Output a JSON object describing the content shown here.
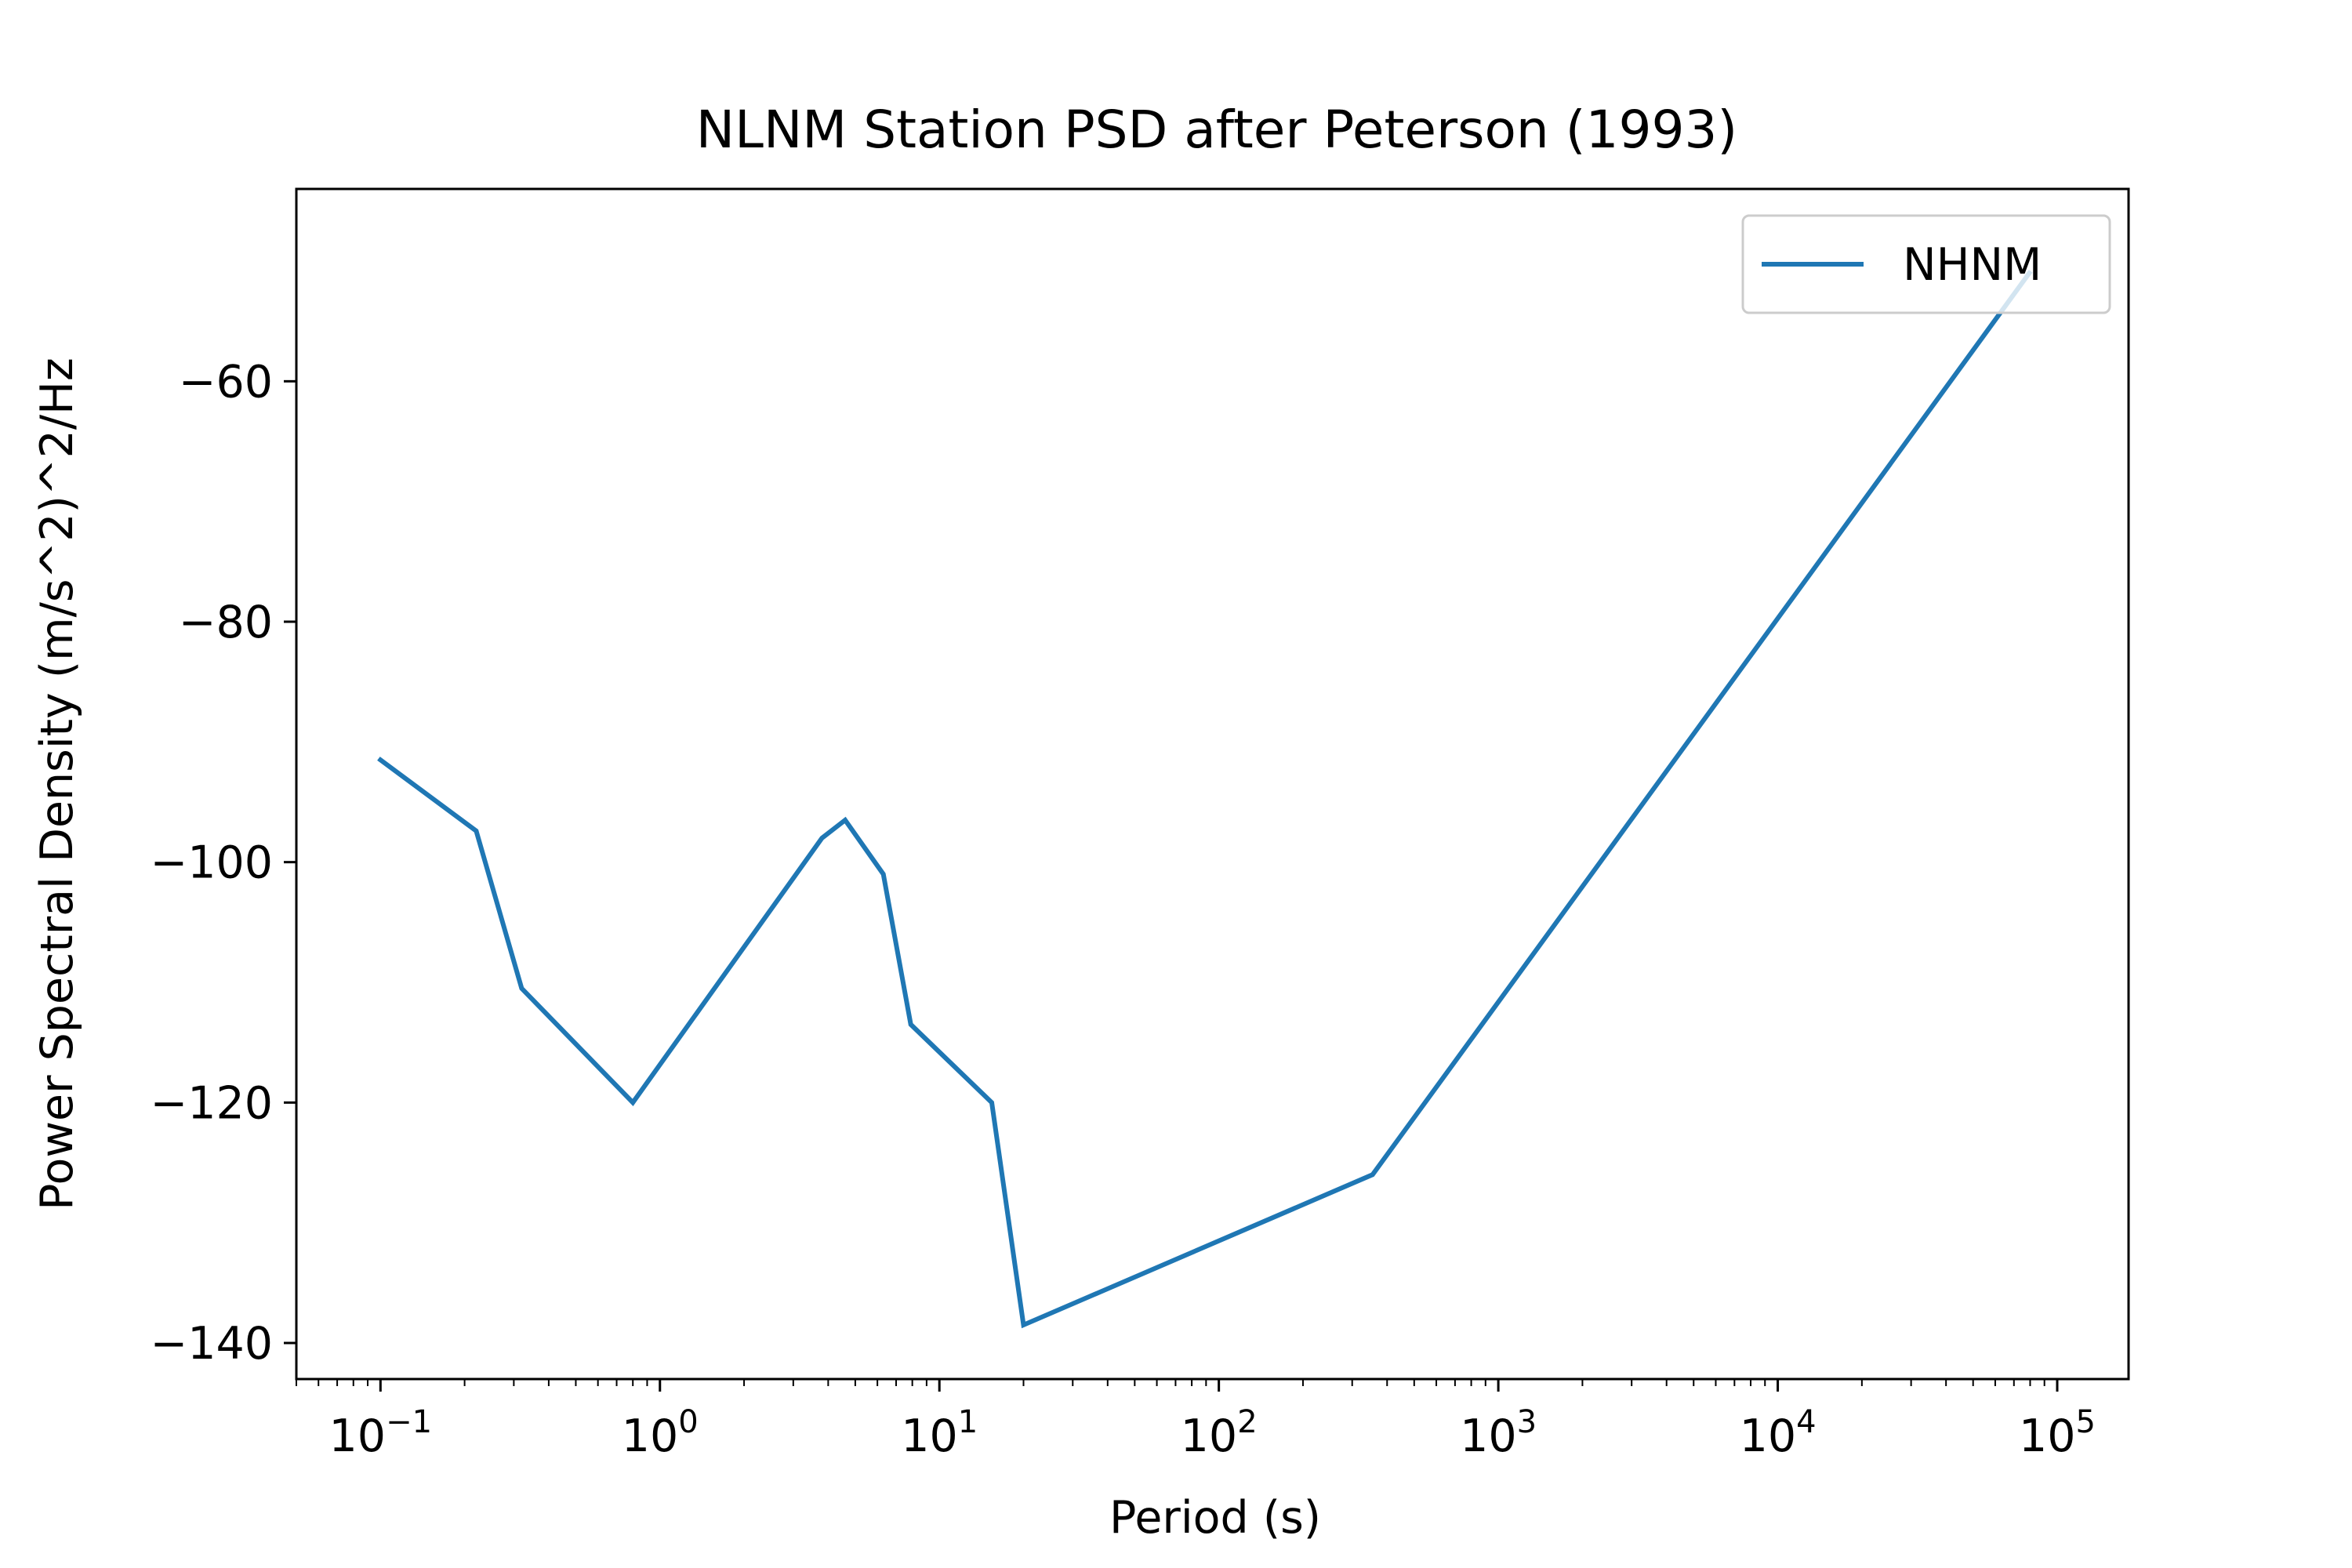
{
  "chart_data": {
    "type": "line",
    "title": "NLNM Station PSD after Peterson (1993)",
    "xlabel": "Period (s)",
    "ylabel": "Power Spectral Density (m/s^2)^2/Hz",
    "xscale": "log",
    "xlim": [
      0.05,
      180000
    ],
    "ylim": [
      -143,
      -44
    ],
    "x_ticks": [
      {
        "value": 0.1,
        "base": "10",
        "exp": "−1"
      },
      {
        "value": 1,
        "base": "10",
        "exp": "0"
      },
      {
        "value": 10,
        "base": "10",
        "exp": "1"
      },
      {
        "value": 100,
        "base": "10",
        "exp": "2"
      },
      {
        "value": 1000,
        "base": "10",
        "exp": "3"
      },
      {
        "value": 10000,
        "base": "10",
        "exp": "4"
      },
      {
        "value": 100000,
        "base": "10",
        "exp": "5"
      }
    ],
    "y_ticks": [
      {
        "value": -60,
        "label": "−60"
      },
      {
        "value": -80,
        "label": "−80"
      },
      {
        "value": -100,
        "label": "−100"
      },
      {
        "value": -120,
        "label": "−120"
      },
      {
        "value": -140,
        "label": "−140"
      }
    ],
    "grid": false,
    "legend_position": "top-right",
    "series": [
      {
        "name": "NHNM",
        "color": "#1f77b4",
        "x": [
          0.1,
          0.22,
          0.32,
          0.8,
          3.8,
          4.6,
          6.3,
          7.9,
          15.4,
          20.0,
          354.8,
          79432.8
        ],
        "y": [
          -91.5,
          -97.4,
          -110.5,
          -120.0,
          -98.0,
          -96.5,
          -101.0,
          -113.5,
          -120.0,
          -138.5,
          -126.0,
          -51.0
        ]
      }
    ]
  }
}
